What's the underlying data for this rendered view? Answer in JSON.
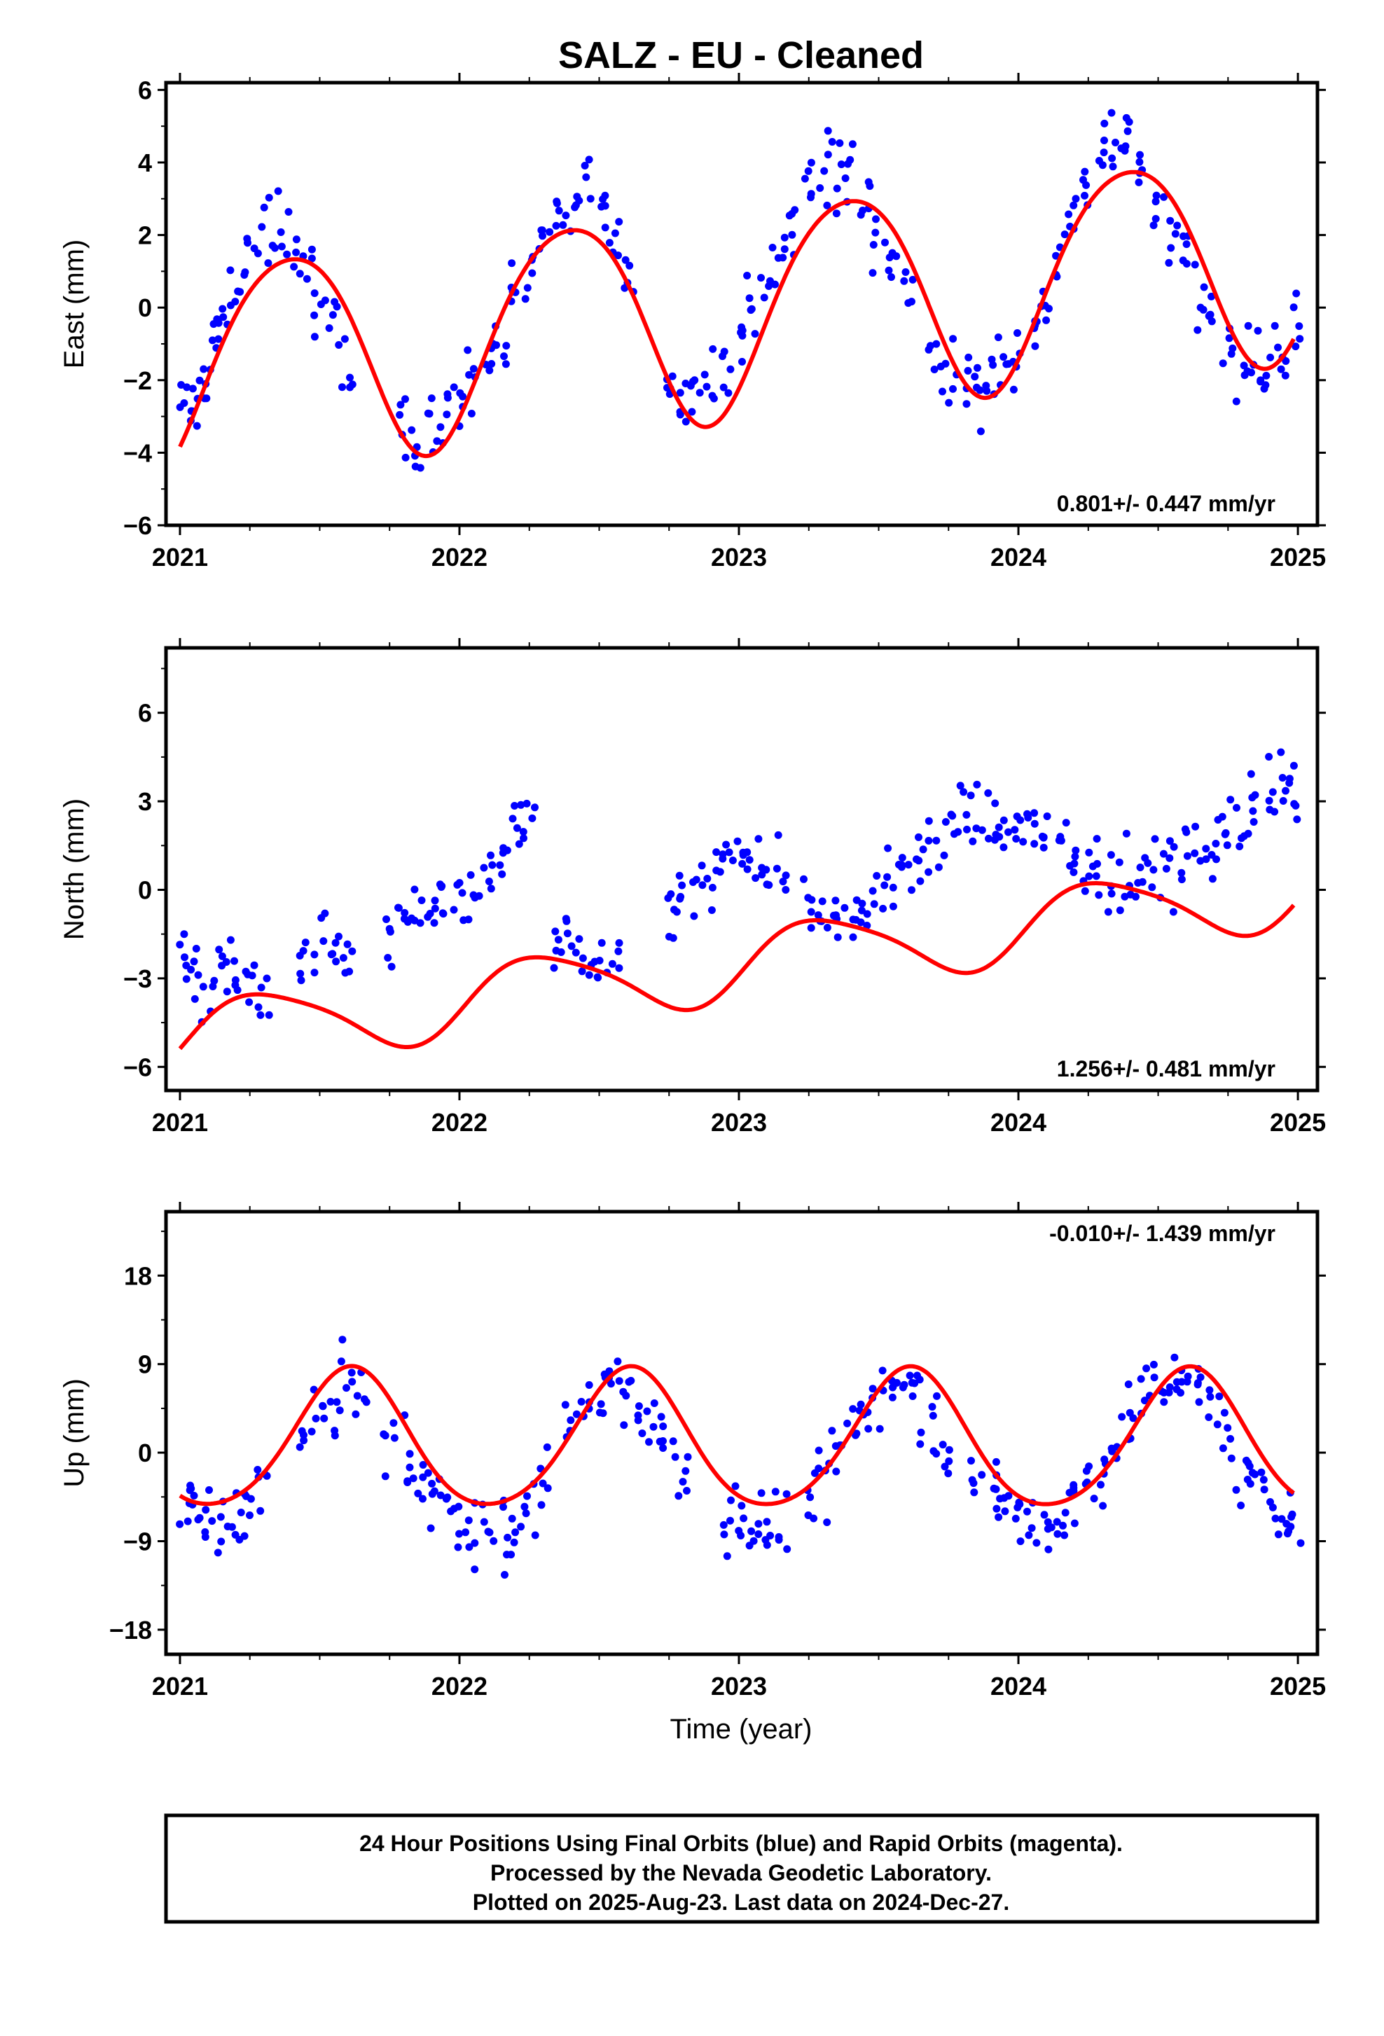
{
  "title": "SALZ  - EU - Cleaned",
  "xlabel": "Time (year)",
  "footer": {
    "line1": "24 Hour Positions Using Final Orbits (blue) and Rapid Orbits (magenta).",
    "line2": "Processed by the Nevada Geodetic Laboratory.",
    "line3": "Plotted on 2025-Aug-23. Last data on 2024-Dec-27."
  },
  "colors": {
    "points": "#0000ff",
    "fit": "#ff0000",
    "frame": "#000000"
  },
  "chart_data": [
    {
      "type": "scatter",
      "ylabel": "East (mm)",
      "xlim": [
        2020.95,
        2025.07
      ],
      "ylim": [
        -6,
        6.2
      ],
      "xticks": [
        2021,
        2022,
        2023,
        2024,
        2025
      ],
      "yticks": [
        -6,
        -4,
        -2,
        0,
        2,
        4,
        6
      ],
      "rate_label": "0.801+/- 0.447 mm/yr",
      "fit": {
        "offset": 0,
        "trend": 0.801,
        "amp1": 2.9,
        "phase1": 0.14,
        "amp2": 0.3,
        "phase2": 0.0
      },
      "seasonal_x": [
        2021.0,
        2021.2,
        2021.4,
        2021.6,
        2021.8,
        2022.0,
        2022.2,
        2022.4,
        2022.6,
        2022.8,
        2023.0,
        2023.2,
        2023.4,
        2023.6,
        2023.8,
        2024.0,
        2024.2,
        2024.4,
        2024.6,
        2024.8,
        2025.0
      ],
      "series": [
        {
          "x": [
            2021.02,
            2021.05,
            2021.08,
            2021.12,
            2021.15,
            2021.2,
            2021.25,
            2021.3,
            2021.35,
            2021.4,
            2021.45,
            2021.5,
            2021.55,
            2021.6,
            2021.8,
            2021.85,
            2021.9,
            2021.95,
            2022.0,
            2022.05,
            2022.1,
            2022.15,
            2022.2,
            2022.25,
            2022.3,
            2022.35,
            2022.4,
            2022.45,
            2022.5,
            2022.55,
            2022.6,
            2022.75,
            2022.8,
            2022.85,
            2022.9,
            2022.95,
            2023.0,
            2023.05,
            2023.1,
            2023.15,
            2023.2,
            2023.25,
            2023.3,
            2023.35,
            2023.4,
            2023.45,
            2023.5,
            2023.55,
            2023.6,
            2023.7,
            2023.75,
            2023.8,
            2023.85,
            2023.9,
            2023.95,
            2024.0,
            2024.05,
            2024.1,
            2024.15,
            2024.2,
            2024.25,
            2024.3,
            2024.35,
            2024.4,
            2024.45,
            2024.5,
            2024.55,
            2024.6,
            2024.65,
            2024.7,
            2024.75,
            2024.8,
            2024.85,
            2024.9,
            2024.95,
            2024.99
          ],
          "y": [
            -2.8,
            -2.5,
            -1.9,
            -1.2,
            -0.4,
            0.8,
            1.5,
            1.9,
            2.1,
            1.6,
            1.2,
            0.4,
            -0.6,
            -1.5,
            -3.4,
            -3.7,
            -3.2,
            -2.7,
            -2.3,
            -2.0,
            -1.5,
            -0.8,
            0.2,
            1.0,
            1.8,
            2.6,
            3.1,
            3.3,
            2.8,
            2.2,
            1.1,
            -2.1,
            -2.4,
            -2.6,
            -2.3,
            -1.7,
            -0.9,
            -0.2,
            0.5,
            1.3,
            2.4,
            3.2,
            3.8,
            4.0,
            3.6,
            2.9,
            2.1,
            1.2,
            0.4,
            -1.4,
            -1.7,
            -2.1,
            -2.2,
            -2.0,
            -1.7,
            -1.2,
            -0.6,
            0.3,
            1.4,
            2.5,
            3.4,
            4.0,
            4.3,
            4.3,
            3.8,
            3.0,
            2.1,
            1.4,
            0.5,
            -0.4,
            -1.1,
            -1.5,
            -1.7,
            -1.6,
            -1.2,
            -0.6
          ]
        }
      ]
    },
    {
      "type": "scatter",
      "ylabel": "North (mm)",
      "xlim": [
        2020.95,
        2025.07
      ],
      "ylim": [
        -6.8,
        8.2
      ],
      "xticks": [
        2021,
        2022,
        2023,
        2024,
        2025
      ],
      "yticks": [
        -6,
        -3,
        0,
        3,
        6
      ],
      "rate_label": "1.256+/- 0.481 mm/yr",
      "fit": {
        "offset": -2.5,
        "trend": 1.256,
        "amp1": 1.2,
        "phase1": 0.05,
        "amp2": 0.2,
        "phase2": 0.0
      },
      "seasonal_x": [],
      "series": [
        {
          "x": [
            2021.02,
            2021.06,
            2021.1,
            2021.15,
            2021.2,
            2021.25,
            2021.3,
            2021.45,
            2021.5,
            2021.55,
            2021.6,
            2021.75,
            2021.8,
            2021.85,
            2021.9,
            2021.95,
            2022.0,
            2022.05,
            2022.1,
            2022.15,
            2022.2,
            2022.25,
            2022.35,
            2022.4,
            2022.45,
            2022.5,
            2022.55,
            2022.75,
            2022.8,
            2022.85,
            2022.9,
            2022.95,
            2023.0,
            2023.05,
            2023.1,
            2023.15,
            2023.25,
            2023.3,
            2023.35,
            2023.4,
            2023.45,
            2023.5,
            2023.55,
            2023.6,
            2023.65,
            2023.7,
            2023.75,
            2023.8,
            2023.85,
            2023.9,
            2023.95,
            2024.0,
            2024.05,
            2024.1,
            2024.15,
            2024.2,
            2024.25,
            2024.3,
            2024.35,
            2024.4,
            2024.45,
            2024.5,
            2024.55,
            2024.6,
            2024.65,
            2024.7,
            2024.75,
            2024.8,
            2024.85,
            2024.9,
            2024.95,
            2024.99
          ],
          "y": [
            -2.4,
            -3.1,
            -3.6,
            -2.8,
            -2.5,
            -2.9,
            -3.1,
            -2.6,
            -2.2,
            -2.0,
            -2.3,
            -1.6,
            -1.2,
            -0.8,
            -0.5,
            -0.2,
            -0.1,
            0.2,
            0.5,
            1.1,
            2.3,
            2.5,
            -1.5,
            -1.8,
            -2.0,
            -2.2,
            -1.9,
            -0.8,
            -0.4,
            0.3,
            0.8,
            1.0,
            1.1,
            0.9,
            0.6,
            0.3,
            -0.5,
            -0.6,
            -0.7,
            -0.8,
            -0.6,
            -0.3,
            0.1,
            0.7,
            1.2,
            1.6,
            2.0,
            2.3,
            2.4,
            2.3,
            2.1,
            2.4,
            2.2,
            1.8,
            1.4,
            0.9,
            0.6,
            0.5,
            0.4,
            0.5,
            0.4,
            0.6,
            0.8,
            1.0,
            1.2,
            1.5,
            1.9,
            2.3,
            2.8,
            3.2,
            3.4,
            3.3
          ]
        }
      ]
    },
    {
      "type": "scatter",
      "ylabel": "Up (mm)",
      "xlim": [
        2020.95,
        2025.07
      ],
      "ylim": [
        -20.5,
        24.5
      ],
      "xticks": [
        2021,
        2022,
        2023,
        2024,
        2025
      ],
      "yticks": [
        -18,
        -9,
        0,
        9,
        18
      ],
      "rate_label": "-0.010+/- 1.439 mm/yr",
      "fit": {
        "offset": 1.0,
        "trend": -0.01,
        "amp1": 7.0,
        "phase1": 0.36,
        "amp2": 0.8,
        "phase2": 0.0
      },
      "seasonal_x": [],
      "series": [
        {
          "x": [
            2021.02,
            2021.06,
            2021.1,
            2021.15,
            2021.2,
            2021.25,
            2021.3,
            2021.45,
            2021.5,
            2021.55,
            2021.6,
            2021.65,
            2021.75,
            2021.8,
            2021.85,
            2021.9,
            2021.95,
            2022.0,
            2022.05,
            2022.1,
            2022.15,
            2022.2,
            2022.25,
            2022.3,
            2022.4,
            2022.45,
            2022.5,
            2022.55,
            2022.6,
            2022.65,
            2022.7,
            2022.75,
            2022.8,
            2022.95,
            2023.0,
            2023.05,
            2023.1,
            2023.15,
            2023.25,
            2023.3,
            2023.35,
            2023.4,
            2023.45,
            2023.5,
            2023.55,
            2023.6,
            2023.65,
            2023.7,
            2023.75,
            2023.85,
            2023.9,
            2023.95,
            2024.0,
            2024.05,
            2024.1,
            2024.15,
            2024.2,
            2024.25,
            2024.3,
            2024.35,
            2024.4,
            2024.45,
            2024.5,
            2024.55,
            2024.6,
            2024.65,
            2024.7,
            2024.75,
            2024.8,
            2024.85,
            2024.9,
            2024.95,
            2024.99
          ],
          "y": [
            -5.0,
            -6.5,
            -7.2,
            -8.1,
            -7.0,
            -6.2,
            -3.0,
            1.5,
            3.5,
            5.0,
            6.8,
            5.5,
            1.5,
            -0.5,
            -2.4,
            -4.0,
            -5.5,
            -6.8,
            -7.5,
            -8.2,
            -8.5,
            -7.8,
            -5.0,
            -2.5,
            3.0,
            4.5,
            6.5,
            7.2,
            6.0,
            4.5,
            3.0,
            0.5,
            -1.0,
            -5.8,
            -7.0,
            -7.8,
            -8.0,
            -7.5,
            -5.0,
            -2.8,
            0.0,
            2.5,
            4.8,
            6.5,
            7.5,
            7.0,
            5.5,
            3.5,
            1.0,
            -2.5,
            -4.0,
            -5.5,
            -6.5,
            -7.2,
            -7.0,
            -6.2,
            -4.8,
            -3.0,
            -1.0,
            1.0,
            3.5,
            5.5,
            6.5,
            8.0,
            7.8,
            6.0,
            4.0,
            1.5,
            -1.5,
            -3.5,
            -5.0,
            -6.0,
            -6.5
          ]
        }
      ]
    }
  ]
}
